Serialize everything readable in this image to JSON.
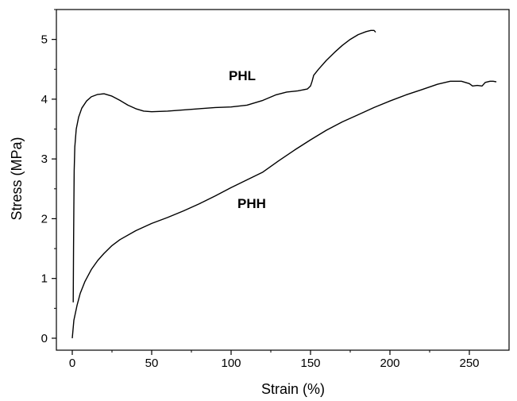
{
  "chart_data": {
    "type": "line",
    "title": "",
    "xlabel": "Strain (%)",
    "ylabel": "Stress (MPa)",
    "xlim": [
      -10,
      275
    ],
    "ylim": [
      -0.2,
      5.5
    ],
    "xticks": [
      0,
      50,
      100,
      150,
      200,
      250
    ],
    "yticks": [
      0,
      1,
      2,
      3,
      4,
      5
    ],
    "grid": false,
    "legend": "none",
    "series": [
      {
        "name": "PHL",
        "color": "#000000",
        "points": [
          [
            0.6,
            0.6
          ],
          [
            0.8,
            1.5
          ],
          [
            1.0,
            2.2
          ],
          [
            1.2,
            2.8
          ],
          [
            1.6,
            3.2
          ],
          [
            2.5,
            3.5
          ],
          [
            4,
            3.7
          ],
          [
            6,
            3.85
          ],
          [
            9,
            3.97
          ],
          [
            12,
            4.04
          ],
          [
            16,
            4.08
          ],
          [
            20,
            4.09
          ],
          [
            25,
            4.05
          ],
          [
            30,
            3.98
          ],
          [
            35,
            3.9
          ],
          [
            40,
            3.84
          ],
          [
            45,
            3.8
          ],
          [
            50,
            3.79
          ],
          [
            60,
            3.8
          ],
          [
            70,
            3.82
          ],
          [
            80,
            3.84
          ],
          [
            90,
            3.86
          ],
          [
            100,
            3.87
          ],
          [
            110,
            3.9
          ],
          [
            120,
            3.98
          ],
          [
            128,
            4.07
          ],
          [
            135,
            4.12
          ],
          [
            142,
            4.14
          ],
          [
            148,
            4.17
          ],
          [
            150,
            4.22
          ],
          [
            151,
            4.3
          ],
          [
            152,
            4.4
          ],
          [
            155,
            4.5
          ],
          [
            160,
            4.65
          ],
          [
            165,
            4.78
          ],
          [
            170,
            4.9
          ],
          [
            175,
            5.0
          ],
          [
            180,
            5.08
          ],
          [
            185,
            5.13
          ],
          [
            188,
            5.15
          ],
          [
            190,
            5.15
          ],
          [
            191,
            5.12
          ]
        ]
      },
      {
        "name": "PHH",
        "color": "#000000",
        "points": [
          [
            0,
            0
          ],
          [
            1,
            0.3
          ],
          [
            3,
            0.55
          ],
          [
            5,
            0.75
          ],
          [
            8,
            0.95
          ],
          [
            12,
            1.15
          ],
          [
            16,
            1.3
          ],
          [
            20,
            1.42
          ],
          [
            25,
            1.55
          ],
          [
            30,
            1.65
          ],
          [
            40,
            1.8
          ],
          [
            50,
            1.92
          ],
          [
            60,
            2.02
          ],
          [
            70,
            2.13
          ],
          [
            80,
            2.25
          ],
          [
            90,
            2.38
          ],
          [
            100,
            2.52
          ],
          [
            110,
            2.65
          ],
          [
            120,
            2.78
          ],
          [
            130,
            2.97
          ],
          [
            140,
            3.15
          ],
          [
            150,
            3.32
          ],
          [
            160,
            3.48
          ],
          [
            170,
            3.62
          ],
          [
            180,
            3.74
          ],
          [
            190,
            3.86
          ],
          [
            200,
            3.97
          ],
          [
            210,
            4.07
          ],
          [
            220,
            4.16
          ],
          [
            230,
            4.25
          ],
          [
            238,
            4.3
          ],
          [
            245,
            4.3
          ],
          [
            250,
            4.26
          ],
          [
            252,
            4.22
          ],
          [
            255,
            4.23
          ],
          [
            258,
            4.22
          ],
          [
            260,
            4.28
          ],
          [
            263,
            4.3
          ],
          [
            265,
            4.3
          ],
          [
            267,
            4.29
          ]
        ]
      }
    ],
    "annotations": [
      {
        "text": "PHL",
        "x": 107,
        "y": 4.32
      },
      {
        "text": "PHH",
        "x": 113,
        "y": 2.18
      }
    ]
  }
}
